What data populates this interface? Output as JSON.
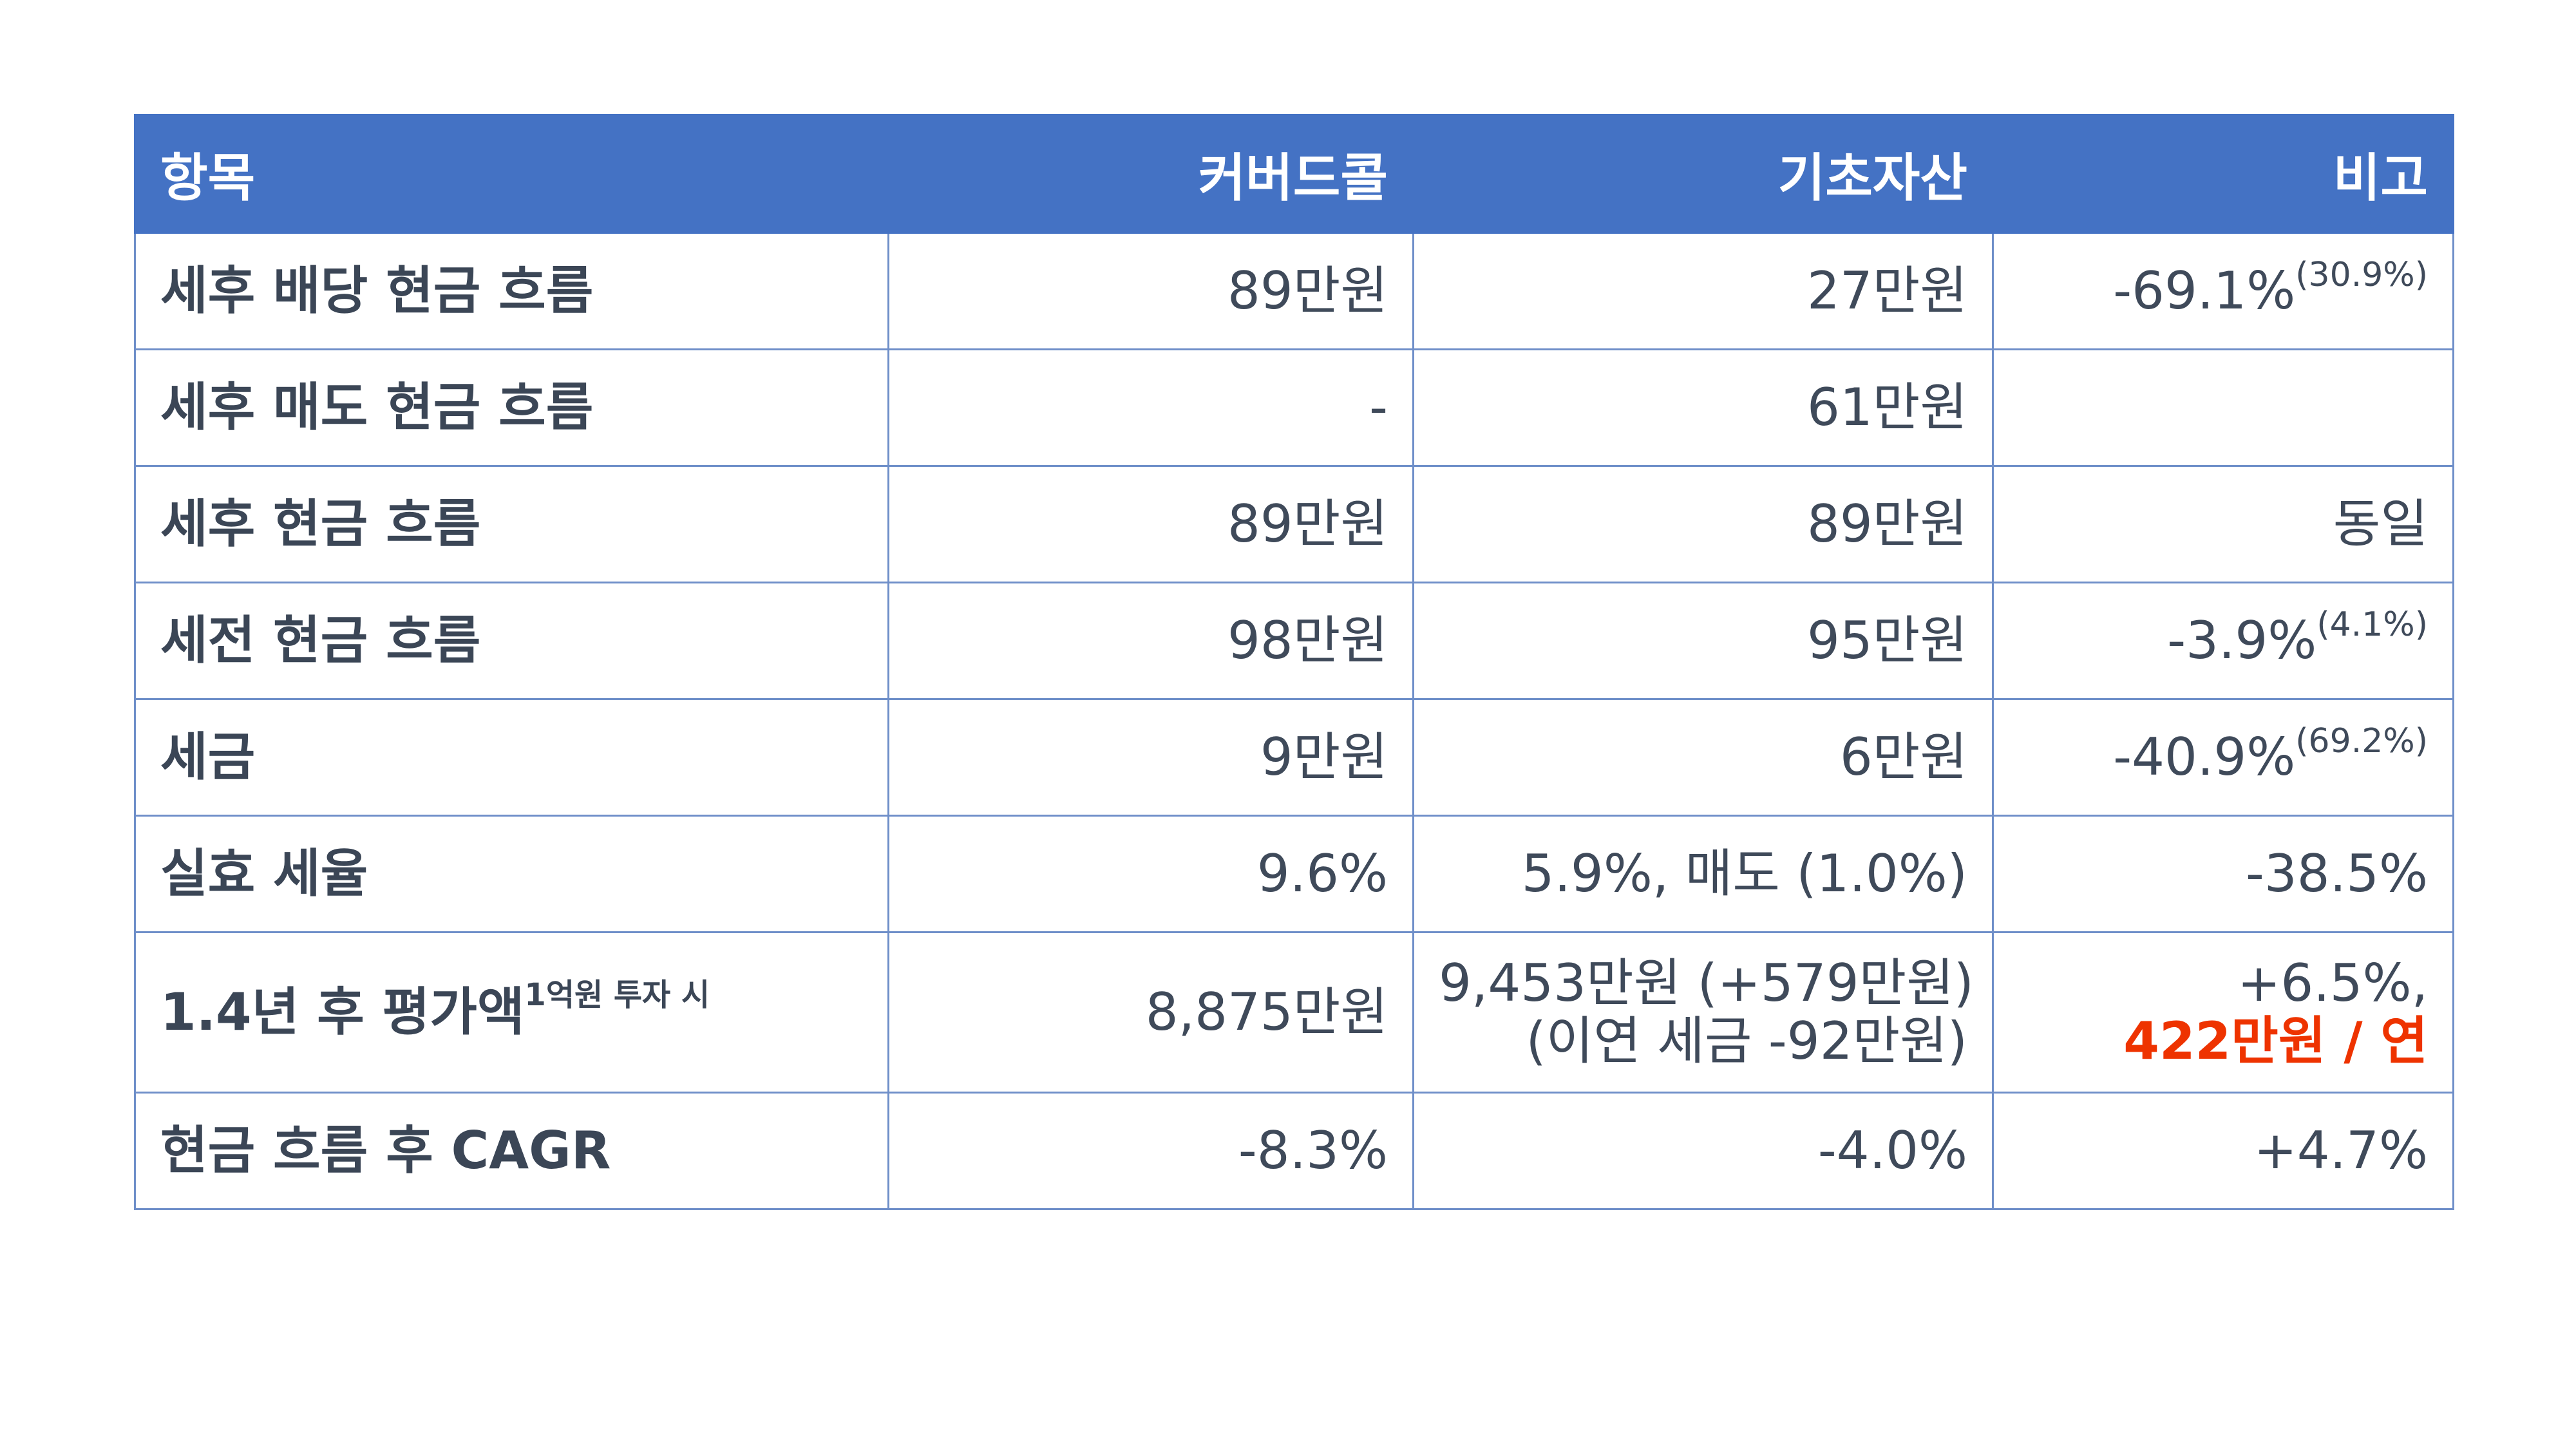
{
  "headers": [
    "항목",
    "커버드콜",
    "기초자산",
    "비고"
  ],
  "rows": [
    {
      "item": "세후 배당 현금 흐름",
      "covered_call": "89만원",
      "underlying": "27만원",
      "note": "-69.1%",
      "note_sup": "(30.9%)"
    },
    {
      "item": "세후 매도 현금 흐름",
      "covered_call": "-",
      "underlying": "61만원",
      "note": "",
      "note_sup": ""
    },
    {
      "item": "세후 현금 흐름",
      "covered_call": "89만원",
      "underlying": "89만원",
      "note": "동일",
      "note_sup": ""
    },
    {
      "item": "세전 현금 흐름",
      "covered_call": "98만원",
      "underlying": "95만원",
      "note": "-3.9%",
      "note_sup": "(4.1%)"
    },
    {
      "item": "세금",
      "covered_call": "9만원",
      "underlying": "6만원",
      "note": "-40.9%",
      "note_sup": "(69.2%)"
    },
    {
      "item": "실효 세율",
      "covered_call": "9.6%",
      "underlying": "5.9%, 매도 (1.0%)",
      "note": "-38.5%",
      "note_sup": ""
    },
    {
      "item": "1.4년 후 평가액",
      "item_sup": "1억원 투자 시",
      "covered_call": "8,875만원",
      "underlying_line1": "9,453만원 (+579만원)",
      "underlying_line2": "(이연 세금 -92만원)",
      "note_line1": "+6.5%,",
      "note_line2": "422만원 / 연"
    },
    {
      "item": "현금 흐름 후 CAGR",
      "covered_call": "-8.3%",
      "underlying": "-4.0%",
      "note": "+4.7%",
      "note_sup": ""
    }
  ],
  "colors": {
    "header_bg": "#4472c4",
    "header_text": "#ffffff",
    "border": "#6f8fc9",
    "text": "#3f4a5a",
    "accent": "#ee3300"
  }
}
